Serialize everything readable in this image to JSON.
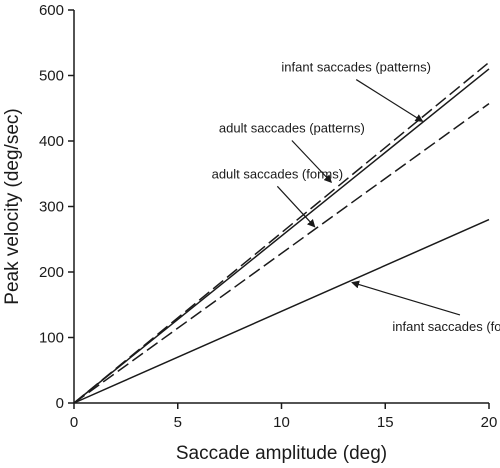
{
  "chart_data": {
    "type": "line",
    "xlabel": "Saccade amplitude (deg)",
    "ylabel": "Peak velocity (deg/sec)",
    "xlim": [
      0,
      20
    ],
    "ylim": [
      0,
      600
    ],
    "xticks": [
      0,
      5,
      10,
      15,
      20
    ],
    "yticks": [
      0,
      100,
      200,
      300,
      400,
      500,
      600
    ],
    "grid": false,
    "series": [
      {
        "name": "infant saccades (patterns)",
        "line_style": "solid",
        "x": [
          0,
          20
        ],
        "y": [
          0,
          510
        ]
      },
      {
        "name": "adult saccades (patterns)",
        "line_style": "long-dash",
        "x": [
          0,
          20
        ],
        "y": [
          0,
          520
        ]
      },
      {
        "name": "adult saccades (forms)",
        "line_style": "long-dash",
        "x": [
          0,
          20
        ],
        "y": [
          0,
          457
        ]
      },
      {
        "name": "infant saccades (forms)",
        "line_style": "solid",
        "x": [
          0,
          20
        ],
        "y": [
          0,
          280
        ]
      }
    ],
    "annotations": [
      {
        "text": "infant saccades (patterns)",
        "series_index": 0,
        "text_at": [
          13.6,
          506
        ],
        "arrow_to": [
          16.8,
          430
        ]
      },
      {
        "text": "adult saccades (patterns)",
        "series_index": 1,
        "text_at": [
          10.5,
          413
        ],
        "arrow_to": [
          12.4,
          337
        ]
      },
      {
        "text": "adult saccades (forms)",
        "series_index": 2,
        "text_at": [
          9.8,
          343
        ],
        "arrow_to": [
          11.6,
          269
        ]
      },
      {
        "text": "infant saccades (forms)",
        "series_index": 3,
        "text_at": [
          18.6,
          110
        ],
        "arrow_to": [
          13.4,
          184
        ]
      }
    ],
    "colors": {
      "line": "#1a1a1a",
      "axis": "#1a1a1a"
    }
  }
}
